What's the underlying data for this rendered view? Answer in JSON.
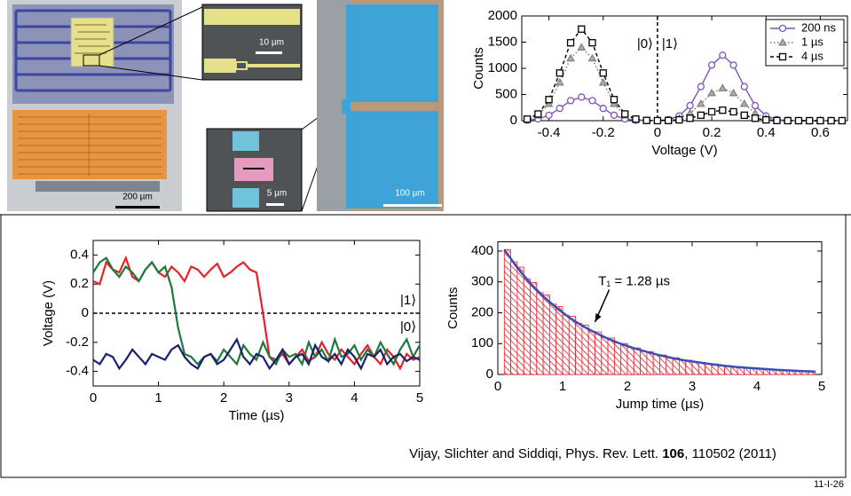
{
  "images": {
    "scale_labels": [
      "200 µm",
      "10 µm",
      "5 µm",
      "100 µm"
    ]
  },
  "citation": {
    "text": "Vijay, Slichter and Siddiqi, Phys. Rev. Lett. ",
    "volume": "106",
    "rest": ", 110502 (2011)"
  },
  "slide_number": "11-I-26",
  "chart_data": [
    {
      "type": "line",
      "xlabel": "Voltage (V)",
      "ylabel": "Counts",
      "xlim": [
        -0.5,
        0.7
      ],
      "xticks": [
        -0.4,
        -0.2,
        0,
        0.2,
        0.4,
        0.6
      ],
      "ylim": [
        0,
        2000
      ],
      "yticks": [
        0,
        500,
        1000,
        1500,
        2000
      ],
      "vline": 0,
      "annotations": [
        "|0⟩",
        "|1⟩"
      ],
      "legend": "upper right",
      "x": [
        -0.48,
        -0.44,
        -0.4,
        -0.36,
        -0.32,
        -0.28,
        -0.24,
        -0.2,
        -0.16,
        -0.12,
        -0.08,
        -0.04,
        0,
        0.04,
        0.08,
        0.12,
        0.16,
        0.2,
        0.24,
        0.28,
        0.32,
        0.36,
        0.4,
        0.44,
        0.48,
        0.52,
        0.56,
        0.6,
        0.64,
        0.68
      ],
      "series": [
        {
          "name": "200 ns",
          "color": "#7b55b5",
          "marker": "circle",
          "linestyle": "solid",
          "values": [
            8,
            33,
            104,
            234,
            383,
            450,
            383,
            234,
            104,
            33,
            8,
            2,
            4,
            21,
            91,
            288,
            650,
            1063,
            1250,
            1063,
            650,
            288,
            91,
            21,
            5,
            0,
            0,
            0,
            0,
            0
          ]
        },
        {
          "name": "1 µs",
          "color": "#777777",
          "marker": "triangle",
          "linestyle": "dotted",
          "values": [
            24,
            102,
            322,
            728,
            1190,
            1400,
            1190,
            728,
            322,
            102,
            24,
            4,
            2,
            10,
            45,
            143,
            322,
            527,
            620,
            527,
            322,
            143,
            45,
            10,
            2,
            0,
            0,
            0,
            0,
            0
          ]
        },
        {
          "name": "4 µs",
          "color": "#000000",
          "marker": "square",
          "linestyle": "dashed",
          "values": [
            30,
            128,
            403,
            910,
            1488,
            1750,
            1488,
            910,
            403,
            128,
            30,
            5,
            1,
            3,
            15,
            46,
            104,
            170,
            200,
            170,
            104,
            46,
            15,
            3,
            0,
            0,
            0,
            0,
            0,
            0
          ]
        }
      ]
    },
    {
      "type": "line",
      "xlabel": "Time (µs)",
      "ylabel": "Voltage (V)",
      "xlim": [
        0,
        5
      ],
      "xticks": [
        0,
        1,
        2,
        3,
        4,
        5
      ],
      "ylim": [
        -0.5,
        0.5
      ],
      "yticks": [
        -0.4,
        -0.2,
        0,
        0.2,
        0.4
      ],
      "hline": 0,
      "annotations": [
        "|1⟩",
        "|0⟩"
      ],
      "x": [
        0,
        0.1,
        0.2,
        0.3,
        0.4,
        0.5,
        0.6,
        0.7,
        0.8,
        0.9,
        1,
        1.1,
        1.2,
        1.3,
        1.4,
        1.5,
        1.6,
        1.7,
        1.8,
        1.9,
        2,
        2.1,
        2.2,
        2.3,
        2.4,
        2.5,
        2.6,
        2.7,
        2.8,
        2.9,
        3,
        3.1,
        3.2,
        3.3,
        3.4,
        3.5,
        3.6,
        3.7,
        3.8,
        3.9,
        4,
        4.1,
        4.2,
        4.3,
        4.4,
        4.5,
        4.6,
        4.7,
        4.8,
        4.9,
        5
      ],
      "series": [
        {
          "color": "#e8202a",
          "values": [
            0.22,
            0.2,
            0.35,
            0.3,
            0.28,
            0.38,
            0.25,
            0.22,
            0.3,
            0.35,
            0.28,
            0.25,
            0.32,
            0.28,
            0.22,
            0.32,
            0.3,
            0.25,
            0.3,
            0.34,
            0.25,
            0.28,
            0.32,
            0.35,
            0.3,
            0.28,
            0.0,
            -0.3,
            -0.32,
            -0.28,
            -0.35,
            -0.3,
            -0.25,
            -0.33,
            -0.3,
            -0.2,
            -0.28,
            -0.32,
            -0.25,
            -0.3,
            -0.35,
            -0.28,
            -0.22,
            -0.3,
            -0.35,
            -0.25,
            -0.3,
            -0.38,
            -0.28,
            -0.32,
            -0.3
          ]
        },
        {
          "color": "#1b7a3a",
          "values": [
            0.28,
            0.35,
            0.38,
            0.3,
            0.25,
            0.32,
            0.28,
            0.22,
            0.3,
            0.35,
            0.28,
            0.32,
            0.18,
            -0.1,
            -0.28,
            -0.3,
            -0.35,
            -0.3,
            -0.28,
            -0.33,
            -0.25,
            -0.3,
            -0.35,
            -0.22,
            -0.28,
            -0.32,
            -0.2,
            -0.3,
            -0.35,
            -0.25,
            -0.3,
            -0.28,
            -0.35,
            -0.2,
            -0.3,
            -0.25,
            -0.33,
            -0.18,
            -0.3,
            -0.28,
            -0.22,
            -0.32,
            -0.25,
            -0.3,
            -0.2,
            -0.28,
            -0.35,
            -0.25,
            -0.18,
            -0.3,
            -0.22
          ]
        },
        {
          "color": "#1a1f6e",
          "values": [
            -0.32,
            -0.35,
            -0.28,
            -0.3,
            -0.38,
            -0.32,
            -0.25,
            -0.3,
            -0.35,
            -0.28,
            -0.3,
            -0.32,
            -0.25,
            -0.22,
            -0.3,
            -0.35,
            -0.38,
            -0.3,
            -0.28,
            -0.35,
            -0.32,
            -0.25,
            -0.18,
            -0.3,
            -0.35,
            -0.28,
            -0.3,
            -0.38,
            -0.32,
            -0.25,
            -0.35,
            -0.3,
            -0.28,
            -0.35,
            -0.22,
            -0.3,
            -0.33,
            -0.28,
            -0.35,
            -0.25,
            -0.3,
            -0.38,
            -0.28,
            -0.3,
            -0.25,
            -0.35,
            -0.3,
            -0.28,
            -0.33,
            -0.3,
            -0.32
          ]
        }
      ]
    },
    {
      "type": "histogram",
      "xlabel": "Jump time (µs)",
      "ylabel": "Counts",
      "xlim": [
        0,
        5
      ],
      "xticks": [
        0,
        1,
        2,
        3,
        4,
        5
      ],
      "ylim": [
        0,
        430
      ],
      "yticks": [
        0,
        100,
        200,
        300,
        400
      ],
      "color": "#e8202a",
      "annotations": [
        "T₁ = 1.28 µs"
      ],
      "bins": [
        0.1,
        0.2,
        0.3,
        0.4,
        0.5,
        0.6,
        0.7,
        0.8,
        0.9,
        1,
        1.1,
        1.2,
        1.3,
        1.4,
        1.5,
        1.6,
        1.7,
        1.8,
        1.9,
        2,
        2.1,
        2.2,
        2.3,
        2.4,
        2.5,
        2.6,
        2.7,
        2.8,
        2.9,
        3,
        3.1,
        3.2,
        3.3,
        3.4,
        3.5,
        3.6,
        3.7,
        3.8,
        3.9,
        4,
        4.1,
        4.2,
        4.3,
        4.4,
        4.5,
        4.6,
        4.7,
        4.8,
        4.9
      ],
      "counts": [
        405,
        365,
        348,
        310,
        298,
        265,
        258,
        228,
        220,
        192,
        188,
        165,
        160,
        140,
        138,
        120,
        118,
        102,
        100,
        88,
        86,
        75,
        74,
        64,
        63,
        55,
        54,
        47,
        46,
        40,
        39,
        34,
        34,
        29,
        29,
        25,
        25,
        21,
        22,
        18,
        19,
        15,
        16,
        13,
        14,
        11,
        12,
        9
      ],
      "fit": {
        "color": "#3a4fb5",
        "x": [
          0.1,
          0.3,
          0.5,
          0.7,
          0.9,
          1.1,
          1.3,
          1.5,
          1.7,
          1.9,
          2.1,
          2.3,
          2.5,
          2.7,
          2.9,
          3.1,
          3.3,
          3.5,
          3.7,
          3.9,
          4.1,
          4.3,
          4.5,
          4.7,
          4.9
        ],
        "values": [
          405,
          346,
          296,
          253,
          217,
          185,
          158,
          136,
          116,
          99,
          85,
          73,
          62,
          53,
          45,
          39,
          33,
          28,
          24,
          21,
          18,
          15,
          13,
          11,
          9.5
        ]
      }
    }
  ]
}
